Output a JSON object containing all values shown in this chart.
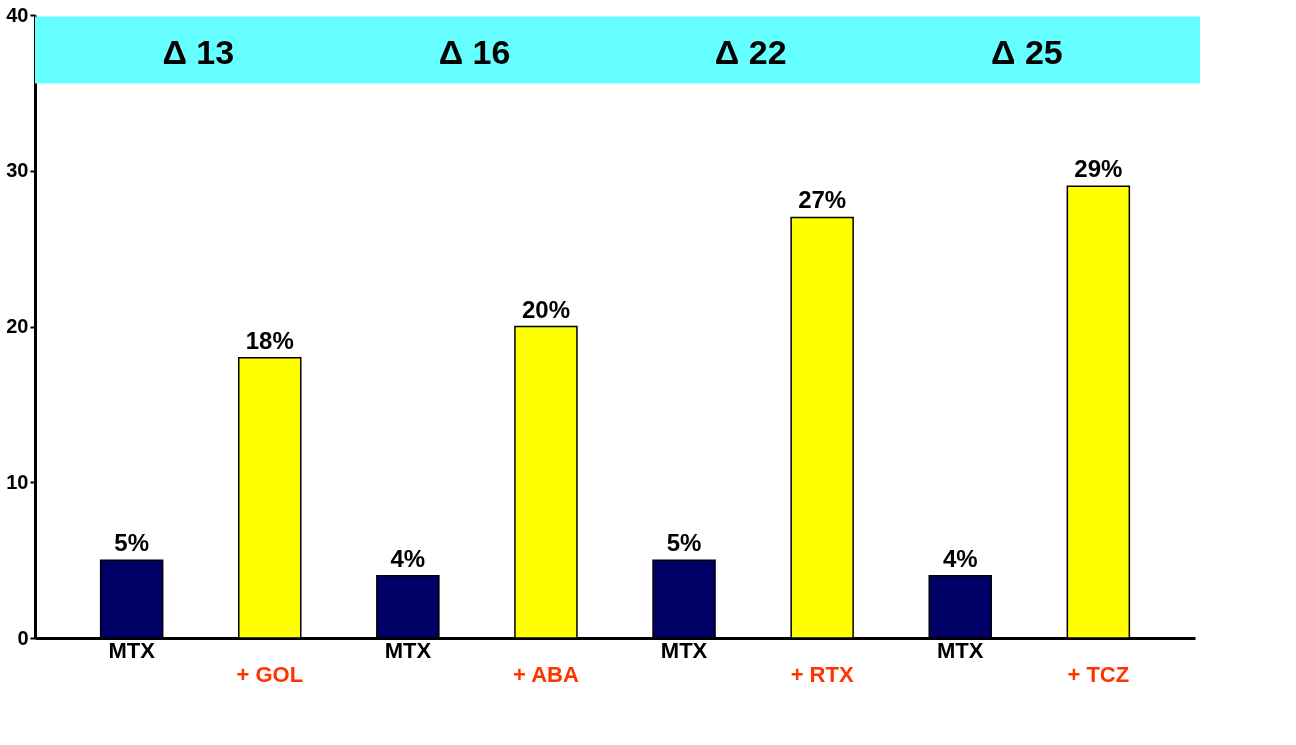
{
  "chart_data": {
    "type": "bar",
    "categories": [
      "MTX",
      "+ GOL",
      "MTX",
      "+ ABA",
      "MTX",
      "+ RTX",
      "MTX",
      "+ TCZ"
    ],
    "values": [
      5,
      18,
      4,
      20,
      5,
      27,
      4,
      29
    ],
    "colors": [
      "#000066",
      "#ffff00",
      "#000066",
      "#ffff00",
      "#000066",
      "#ffff00",
      "#000066",
      "#ffff00"
    ],
    "value_labels": [
      "5%",
      "18%",
      "4%",
      "20%",
      "5%",
      "27%",
      "4%",
      "29%"
    ],
    "annotations": [
      "Δ 13",
      "Δ 16",
      "Δ 22",
      "Δ 25"
    ],
    "bands": [
      {
        "axis": "y",
        "from": 35.6,
        "to": 39.9,
        "color": "#66ffff"
      }
    ],
    "ylim": [
      0,
      40
    ],
    "yticks": [
      0,
      10,
      20,
      30,
      40
    ],
    "grid": false
  }
}
